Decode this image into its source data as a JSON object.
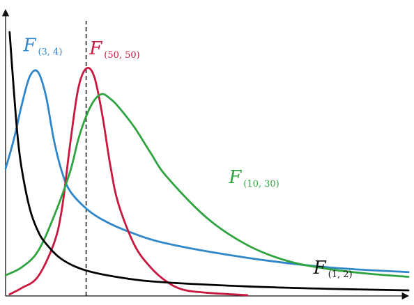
{
  "chart_data": {
    "type": "line",
    "title": "",
    "xlabel": "",
    "ylabel": "",
    "grid": false,
    "ticks": false,
    "xlim": [
      0,
      5
    ],
    "ylim": [
      0,
      1.8
    ],
    "vline": {
      "x": 1,
      "style": "dashed",
      "color": "#222222"
    },
    "series": [
      {
        "key": "f12",
        "name": "F",
        "subscript": "(1, 2)",
        "color": "#000000",
        "x": [
          0.05,
          0.1,
          0.15,
          0.2,
          0.3,
          0.4,
          0.5,
          0.7,
          1.0,
          1.5,
          2.0,
          3.0,
          4.0,
          5.0
        ],
        "y": [
          1.66,
          1.31,
          1.0,
          0.8,
          0.55,
          0.41,
          0.33,
          0.23,
          0.16,
          0.11,
          0.085,
          0.06,
          0.045,
          0.035
        ]
      },
      {
        "key": "f34",
        "name": "F",
        "subscript": "(3, 4)",
        "color": "#2f86c8",
        "x": [
          0.0,
          0.1,
          0.2,
          0.3,
          0.4,
          0.5,
          0.6,
          0.7,
          0.8,
          1.0,
          1.2,
          1.5,
          2.0,
          3.0,
          4.0,
          5.0
        ],
        "y": [
          0.8,
          0.98,
          1.2,
          1.38,
          1.41,
          1.26,
          0.98,
          0.78,
          0.66,
          0.55,
          0.48,
          0.41,
          0.33,
          0.24,
          0.18,
          0.15
        ]
      },
      {
        "key": "f5050",
        "name": "F",
        "subscript": "(50, 50)",
        "color": "#c9183f",
        "x": [
          0.05,
          0.2,
          0.4,
          0.6,
          0.7,
          0.8,
          0.9,
          1.0,
          1.1,
          1.2,
          1.3,
          1.4,
          1.6,
          1.8,
          2.0,
          2.2,
          2.5,
          3.0
        ],
        "y": [
          0.01,
          0.05,
          0.12,
          0.33,
          0.55,
          0.95,
          1.3,
          1.43,
          1.38,
          1.14,
          0.82,
          0.58,
          0.32,
          0.18,
          0.09,
          0.04,
          0.02,
          0.005
        ]
      },
      {
        "key": "f1030",
        "name": "F",
        "subscript": "(10, 30)",
        "color": "#2ea33f",
        "x": [
          0.0,
          0.2,
          0.4,
          0.6,
          0.8,
          0.9,
          1.0,
          1.1,
          1.2,
          1.3,
          1.4,
          1.6,
          1.8,
          2.0,
          2.5,
          3.0,
          3.5,
          4.0,
          4.5,
          5.0
        ],
        "y": [
          0.13,
          0.18,
          0.28,
          0.5,
          0.78,
          0.98,
          1.13,
          1.23,
          1.27,
          1.24,
          1.19,
          1.06,
          0.9,
          0.75,
          0.49,
          0.32,
          0.22,
          0.17,
          0.14,
          0.12
        ]
      }
    ],
    "annotations": [
      {
        "for": "f34",
        "main": "F",
        "sub": "(3, 4)",
        "x": 0.22,
        "y": 1.54,
        "color": "#2f86c8"
      },
      {
        "for": "f5050",
        "main": "F",
        "sub": "(50, 50)",
        "x": 1.04,
        "y": 1.52,
        "color": "#c9183f"
      },
      {
        "for": "f1030",
        "main": "F",
        "sub": "(10, 30)",
        "x": 2.77,
        "y": 0.71,
        "color": "#2ea33f"
      },
      {
        "for": "f12",
        "main": "F",
        "sub": "(1, 2)",
        "x": 3.82,
        "y": 0.14,
        "color": "#111111"
      }
    ]
  }
}
